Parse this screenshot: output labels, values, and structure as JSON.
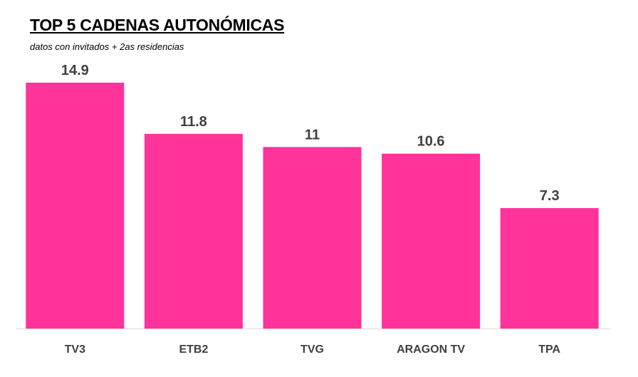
{
  "chart_data": {
    "type": "bar",
    "title": "TOP 5 CADENAS AUTONÓMICAS",
    "subtitle": "datos con invitados + 2as residencias",
    "categories": [
      "TV3",
      "ETB2",
      "TVG",
      "ARAGON TV",
      "TPA"
    ],
    "values": [
      14.9,
      11.8,
      11,
      10.6,
      7.3
    ],
    "value_labels": [
      "14.9",
      "11.8",
      "11",
      "10.6",
      "7.3"
    ],
    "bar_color": "#FF3399",
    "ylim": [
      0,
      15
    ],
    "grid": false,
    "legend": "none"
  }
}
